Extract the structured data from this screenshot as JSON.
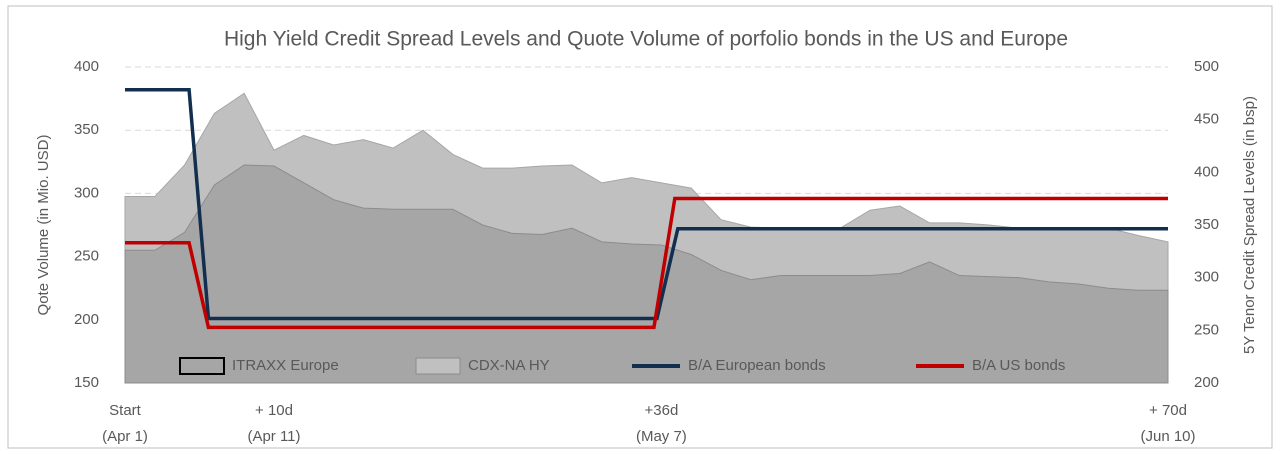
{
  "chart_data": {
    "type": "area-line",
    "title": "High Yield Credit Spread Levels and Quote Volume of porfolio bonds in the US and Europe",
    "y_label": "Qote Volume (in Mio. USD)",
    "y2_label": "5Y Tenor Credit Spread Levels (in bsp)",
    "x": [
      0,
      2,
      4,
      6,
      8,
      10,
      12,
      14,
      16,
      18,
      20,
      22,
      24,
      26,
      28,
      30,
      32,
      34,
      36,
      38,
      40,
      42,
      44,
      46,
      48,
      50,
      52,
      54,
      56,
      58,
      60,
      62,
      64,
      66,
      68,
      70
    ],
    "xlim": [
      0,
      70
    ],
    "xticks": [
      {
        "value": 0,
        "label": "Start",
        "sublabel": "(Apr 1)"
      },
      {
        "value": 10,
        "label": "+ 10d",
        "sublabel": "(Apr 11)"
      },
      {
        "value": 36,
        "label": "+36d",
        "sublabel": "(May 7)"
      },
      {
        "value": 70,
        "label": "+ 70d",
        "sublabel": "(Jun 10)"
      }
    ],
    "ylim": [
      150,
      400
    ],
    "yticks": [
      150,
      200,
      250,
      300,
      350,
      400
    ],
    "y2lim": [
      200,
      500
    ],
    "y2ticks": [
      200,
      250,
      300,
      350,
      400,
      450,
      500
    ],
    "grid": true,
    "series": [
      {
        "name": "CDX-NA HY",
        "kind": "area",
        "axis": "y2",
        "color": "#c0c0c0",
        "values": [
          377,
          377,
          407,
          456,
          475,
          421,
          435,
          426,
          431,
          423,
          440,
          417,
          404,
          404,
          406,
          407,
          390,
          395,
          390,
          385,
          355,
          348,
          347,
          347,
          347,
          364,
          368,
          352,
          352,
          350,
          347,
          347,
          347,
          347,
          340,
          334
        ]
      },
      {
        "name": "ITRAXX Europe",
        "kind": "area",
        "axis": "y2",
        "color": "#a6a6a6",
        "values": [
          326,
          326,
          343,
          388,
          407,
          406,
          390,
          374,
          366,
          365,
          365,
          365,
          350,
          342,
          341,
          347,
          334,
          332,
          331,
          322,
          307,
          298,
          302,
          302,
          302,
          302,
          304,
          315,
          302,
          301,
          300,
          296,
          294,
          290,
          288,
          288
        ]
      },
      {
        "name": "B/A European bonds",
        "kind": "line",
        "color": "#132f4f",
        "x": [
          0,
          4.3,
          5.6,
          35.7,
          37.1,
          70
        ],
        "values": [
          382,
          382,
          201,
          201,
          272,
          272
        ]
      },
      {
        "name": "B/A US bonds",
        "kind": "line",
        "color": "#c00000",
        "x": [
          0,
          4.3,
          5.6,
          35.5,
          36.9,
          70
        ],
        "values": [
          261,
          261,
          194,
          194,
          296,
          296
        ]
      }
    ]
  }
}
